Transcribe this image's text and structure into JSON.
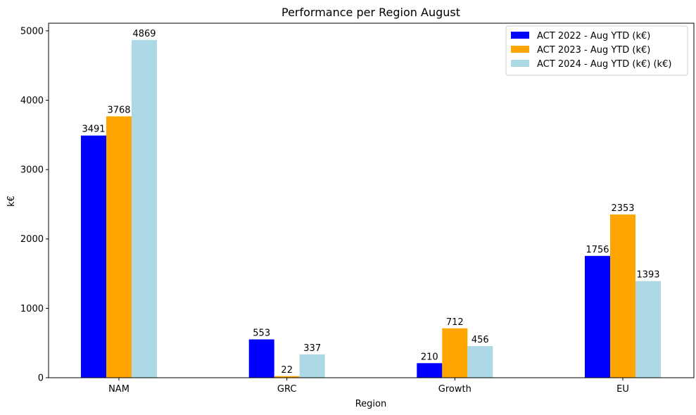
{
  "chart_data": {
    "type": "bar",
    "title": "Performance per Region August",
    "xlabel": "Region",
    "ylabel": "k€",
    "categories": [
      "NAM",
      "GRC",
      "Growth",
      "EU"
    ],
    "ylim": [
      0,
      5110
    ],
    "yticks": [
      0,
      1000,
      2000,
      3000,
      4000,
      5000
    ],
    "grid": false,
    "legend_position": "top-right",
    "series": [
      {
        "name": "ACT 2022 - Aug YTD (k€)",
        "color": "#0000ff",
        "values": [
          3491,
          553,
          210,
          1756
        ]
      },
      {
        "name": "ACT 2023 - Aug YTD (k€)",
        "color": "#ffa500",
        "values": [
          3768,
          22,
          712,
          2353
        ]
      },
      {
        "name": "ACT 2024 - Aug YTD (k€) (k€)",
        "color": "#add8e6",
        "values": [
          4869,
          337,
          456,
          1393
        ]
      }
    ]
  }
}
